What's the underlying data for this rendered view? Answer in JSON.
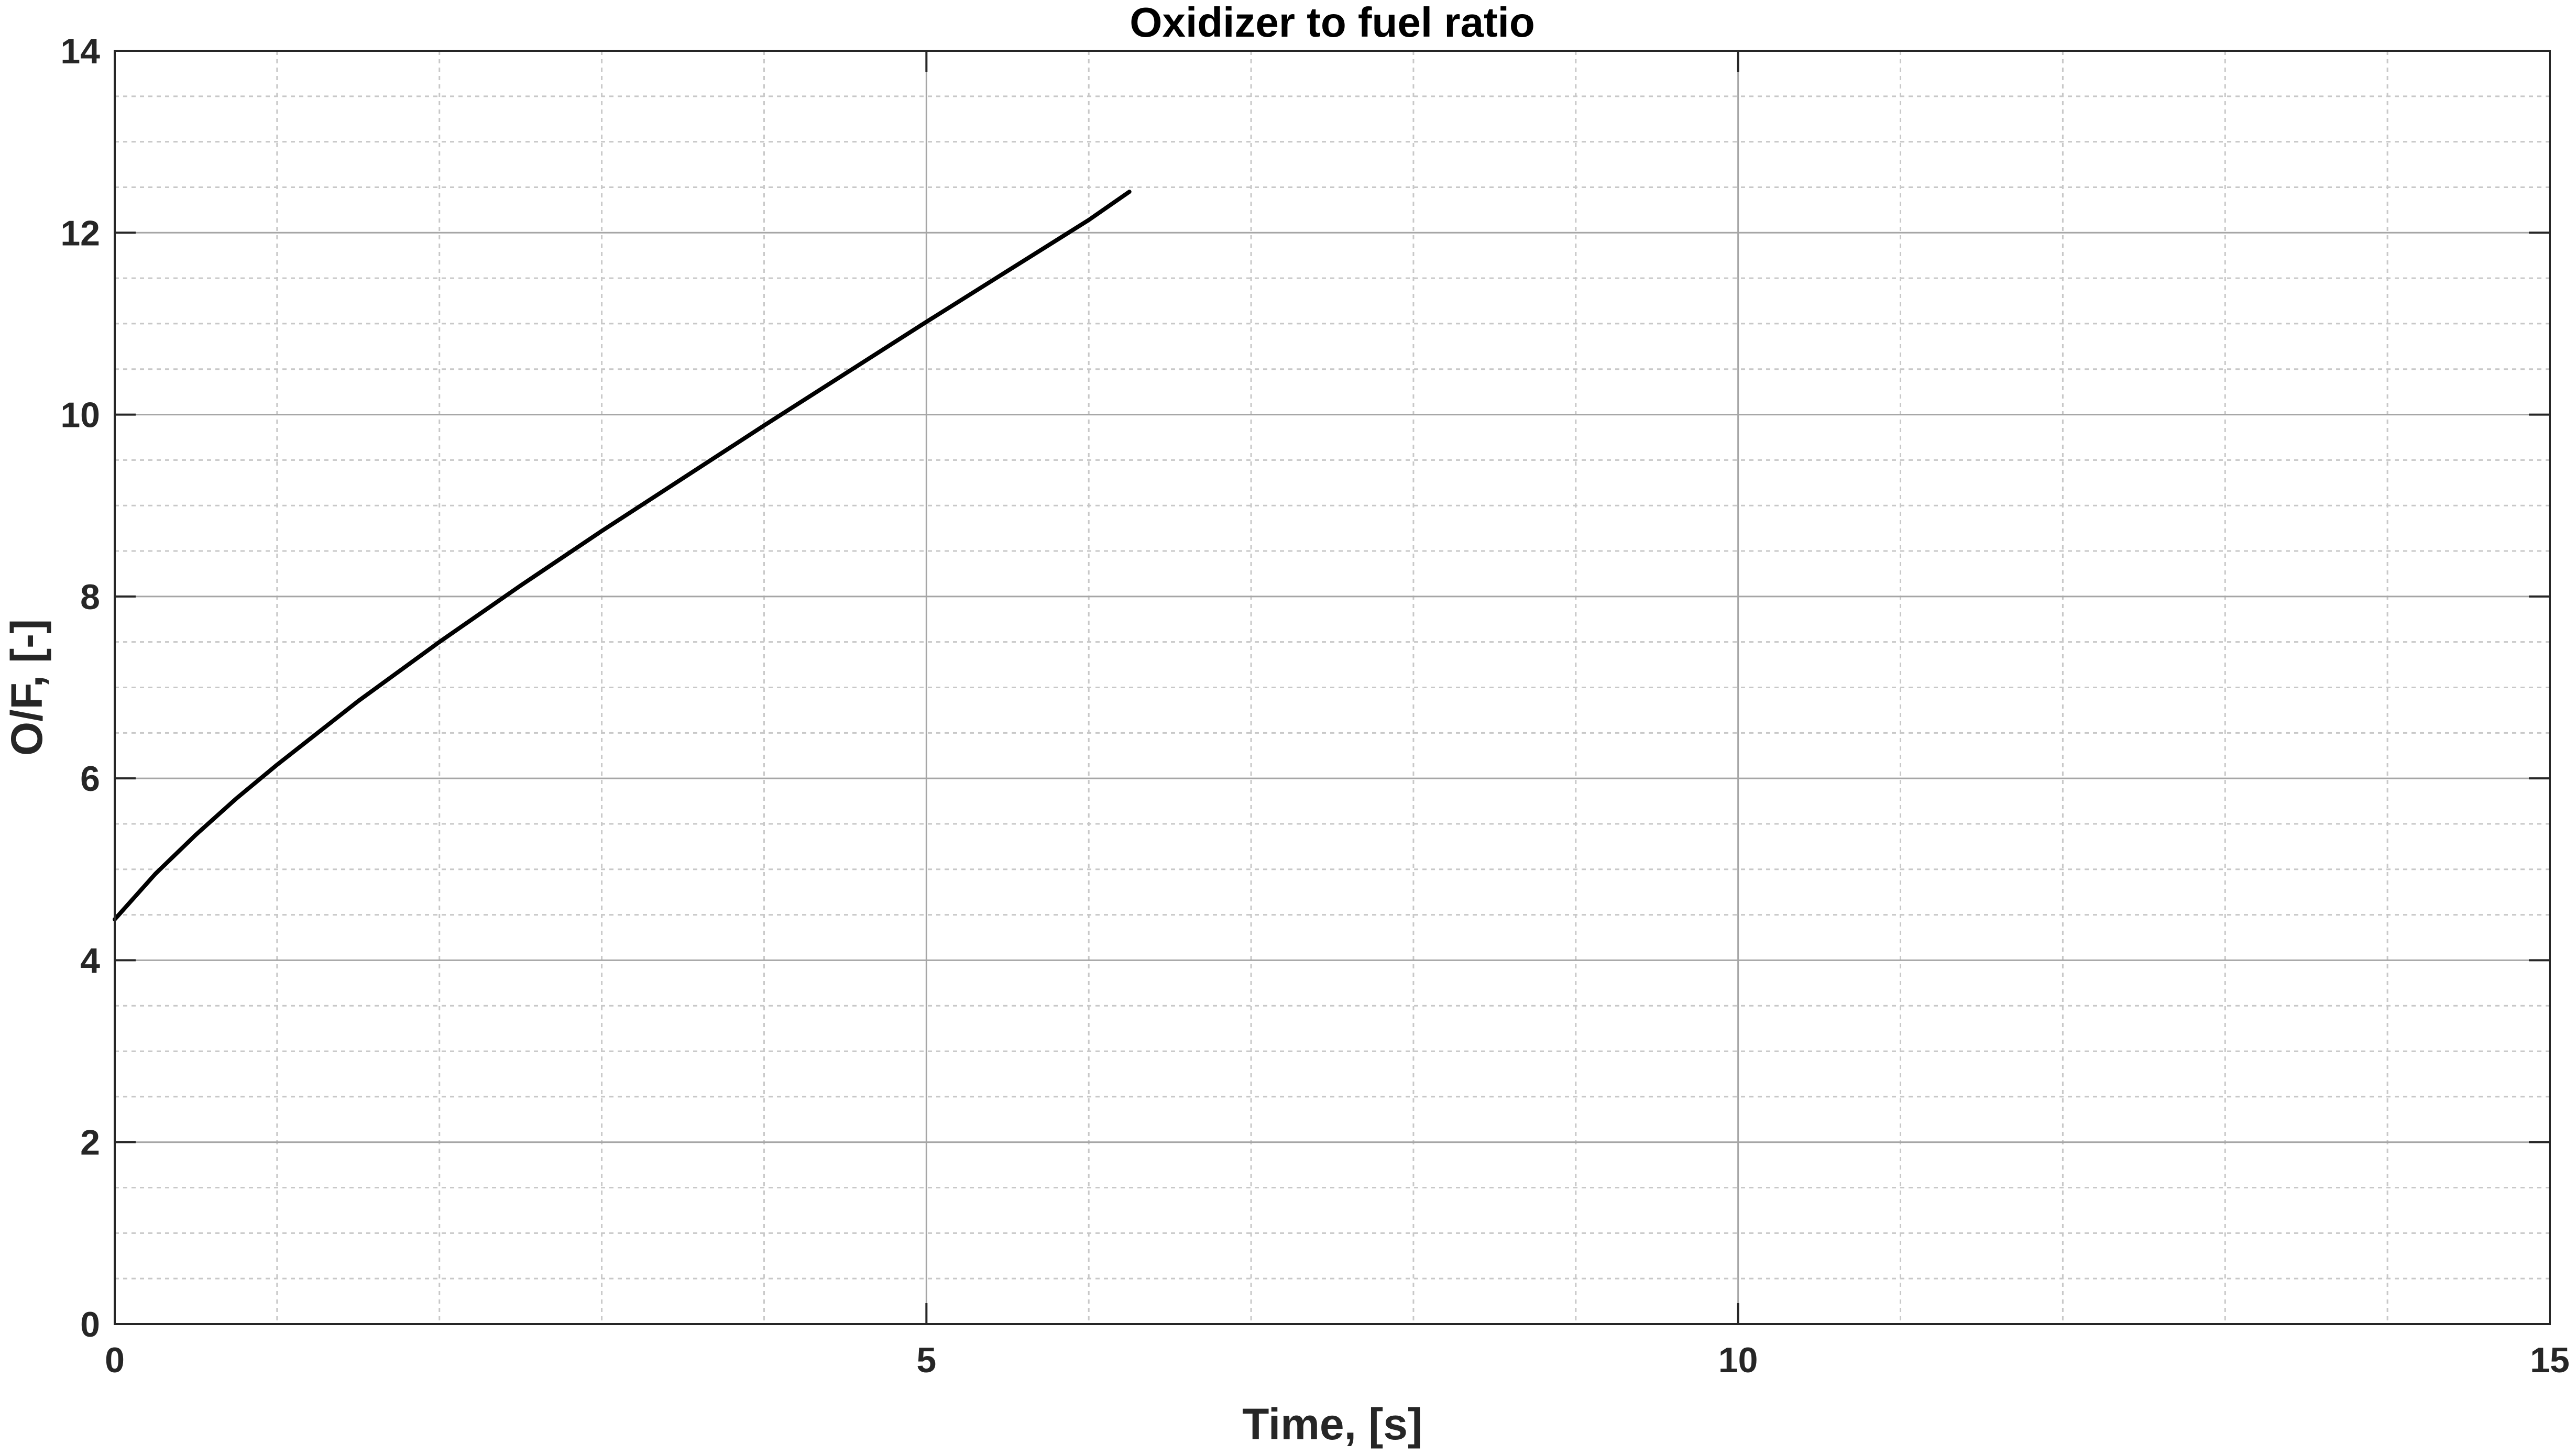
{
  "chart_data": {
    "type": "line",
    "title": "Oxidizer to fuel ratio",
    "xlabel": "Time, [s]",
    "ylabel": "O/F, [-]",
    "xlim": [
      0,
      15
    ],
    "ylim": [
      0,
      14
    ],
    "x_ticks": [
      0,
      5,
      10,
      15
    ],
    "y_ticks": [
      0,
      2,
      4,
      6,
      8,
      10,
      12,
      14
    ],
    "x_minor_ticks": [
      1,
      2,
      3,
      4,
      6,
      7,
      8,
      9,
      11,
      12,
      13,
      14
    ],
    "y_minor_ticks": [
      0.5,
      1,
      1.5,
      2.5,
      3,
      3.5,
      4.5,
      5,
      5.5,
      6.5,
      7,
      7.5,
      8.5,
      9,
      9.5,
      10.5,
      11,
      11.5,
      12.5,
      13,
      13.5
    ],
    "grid": true,
    "minor_grid": true,
    "legend": "none",
    "colors": {
      "series": "#000000",
      "axis": "#262626",
      "major_grid": "#a6a6a6",
      "minor_grid": "#c8c8c8",
      "background": "#ffffff"
    },
    "series": [
      {
        "x": [
          0,
          0.1,
          0.25,
          0.5,
          0.75,
          1.0,
          1.5,
          2.0,
          2.5,
          3.0,
          3.5,
          4.0,
          4.5,
          5.0,
          5.5,
          6.0,
          6.25
        ],
        "y": [
          4.45,
          4.65,
          4.95,
          5.38,
          5.78,
          6.15,
          6.85,
          7.5,
          8.12,
          8.72,
          9.3,
          9.88,
          10.45,
          11.02,
          11.58,
          12.14,
          12.45
        ]
      }
    ]
  }
}
